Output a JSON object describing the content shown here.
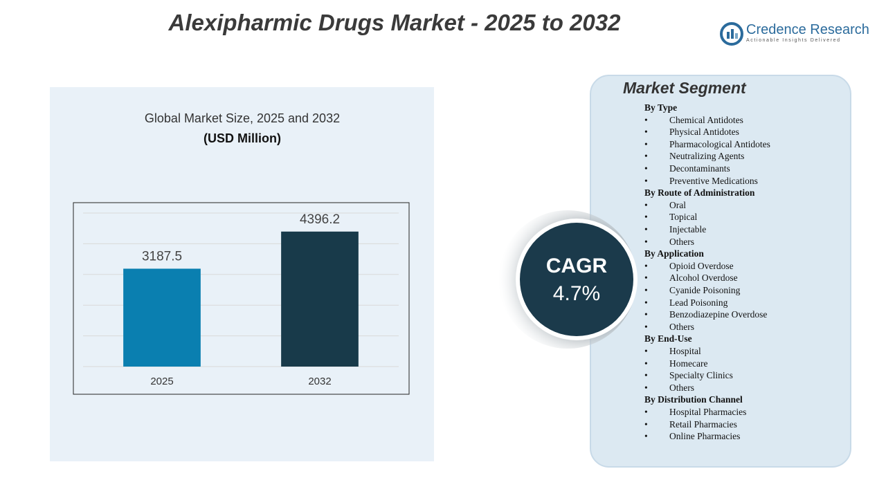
{
  "title": "Alexipharmic Drugs Market - 2025 to 2032",
  "logo": {
    "name": "Credence Research",
    "tagline": "Actionable Insights Delivered"
  },
  "chart_data": {
    "type": "bar",
    "title": "Global Market Size, 2025 and 2032",
    "subtitle": "(USD Million)",
    "categories": [
      "2025",
      "2032"
    ],
    "values": [
      3187.5,
      4396.2
    ],
    "colors": [
      "#0a7fb0",
      "#183a4a"
    ],
    "ylim": [
      0,
      5000
    ],
    "yticks": [
      0,
      1000,
      2000,
      3000,
      4000,
      5000
    ],
    "grid": true
  },
  "cagr": {
    "label": "CAGR",
    "value": "4.7%"
  },
  "segments_title": "Market Segment",
  "segments": [
    {
      "heading": "By Type",
      "items": [
        "Chemical Antidotes",
        "Physical Antidotes",
        "Pharmacological Antidotes",
        "Neutralizing Agents",
        "Decontaminants",
        "Preventive Medications"
      ]
    },
    {
      "heading": "By Route of Administration",
      "items": [
        "Oral",
        "Topical",
        "Injectable",
        "Others"
      ]
    },
    {
      "heading": "By Application",
      "items": [
        "Opioid Overdose",
        "Alcohol Overdose",
        "Cyanide Poisoning",
        "Lead Poisoning",
        "Benzodiazepine Overdose",
        "Others"
      ]
    },
    {
      "heading": "By End-Use",
      "items": [
        "Hospital",
        "Homecare",
        "Specialty Clinics",
        "Others"
      ]
    },
    {
      "heading": "By Distribution Channel",
      "items": [
        "Hospital Pharmacies",
        "Retail Pharmacies",
        "Online Pharmacies"
      ]
    }
  ]
}
